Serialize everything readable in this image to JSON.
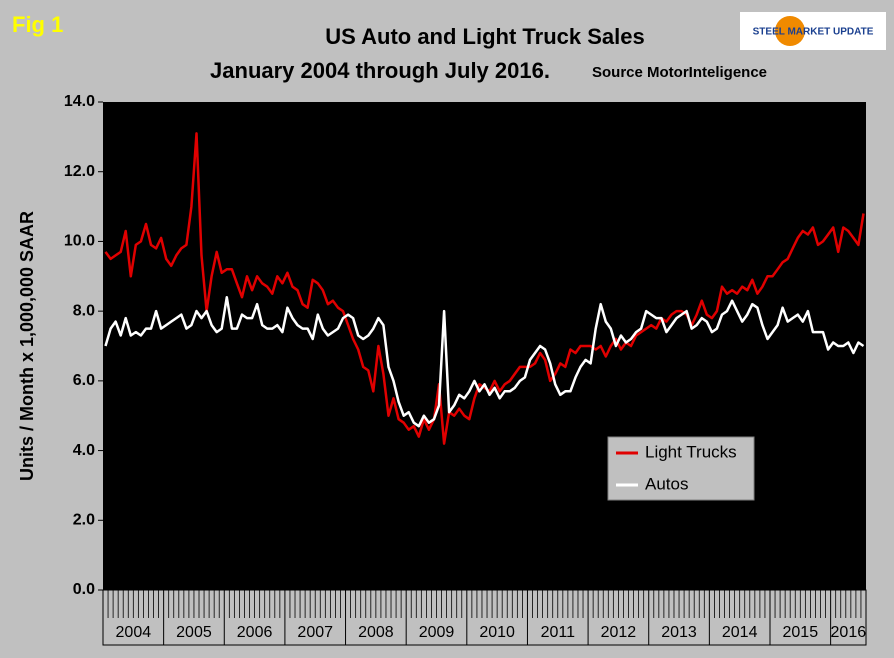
{
  "chart_data": {
    "type": "line",
    "fig_label": "Fig 1",
    "title": "US Auto and Light Truck Sales",
    "subtitle": "January 2004 through July 2016.",
    "source": "Source MotorInteligence",
    "logo": "STEEL MARKET UPDATE",
    "y_label": "Units / Month x 1,000,000 SAAR",
    "categories": [
      "2004",
      "2005",
      "2006",
      "2007",
      "2008",
      "2009",
      "2010",
      "2011",
      "2012",
      "2013",
      "2014",
      "2015",
      "2016"
    ],
    "ylim": [
      0,
      14
    ],
    "yticks": [
      {
        "value": 0,
        "label": "0.0"
      },
      {
        "value": 2,
        "label": "2.0"
      },
      {
        "value": 4,
        "label": "4.0"
      },
      {
        "value": 6,
        "label": "6.0"
      },
      {
        "value": 8,
        "label": "8.0"
      },
      {
        "value": 10,
        "label": "10.0"
      },
      {
        "value": 12,
        "label": "12.0"
      },
      {
        "value": 14,
        "label": "14.0"
      }
    ],
    "grid": false,
    "legend": "lower right",
    "series": [
      {
        "name": "Light Trucks",
        "color": "#e00000",
        "values": [
          [
            9.7,
            9.5,
            9.6,
            9.7,
            10.3,
            9.0,
            9.9,
            10.0,
            10.5,
            9.9,
            9.8,
            10.1
          ],
          [
            9.5,
            9.3,
            9.6,
            9.8,
            9.9,
            11.0,
            13.1,
            9.6,
            8.0,
            9.0,
            9.7,
            9.1
          ],
          [
            9.2,
            9.2,
            8.8,
            8.4,
            9.0,
            8.6,
            9.0,
            8.8,
            8.7,
            8.5,
            9.0,
            8.8
          ],
          [
            9.1,
            8.7,
            8.6,
            8.2,
            8.1,
            8.9,
            8.8,
            8.6,
            8.2,
            8.3,
            8.1,
            8.0
          ],
          [
            7.6,
            7.2,
            6.9,
            6.4,
            6.3,
            5.7,
            7.0,
            6.2,
            5.0,
            5.5,
            4.9,
            4.8
          ],
          [
            4.6,
            4.7,
            4.4,
            4.9,
            4.6,
            4.9,
            5.9,
            4.2,
            5.1,
            5.0,
            5.2,
            5.0
          ],
          [
            4.9,
            5.5,
            5.9,
            5.8,
            5.7,
            6.0,
            5.7,
            5.9,
            6.0,
            6.2,
            6.4,
            6.4
          ],
          [
            6.4,
            6.5,
            6.8,
            6.6,
            6.0,
            6.2,
            6.5,
            6.4,
            6.9,
            6.8,
            7.0,
            7.0
          ],
          [
            7.0,
            6.9,
            7.0,
            6.7,
            7.0,
            7.2,
            6.9,
            7.1,
            7.0,
            7.3,
            7.4,
            7.5
          ],
          [
            7.6,
            7.5,
            7.8,
            7.7,
            7.9,
            8.0,
            8.0,
            7.9,
            7.6,
            7.9,
            8.3,
            7.9
          ],
          [
            7.8,
            8.0,
            8.7,
            8.5,
            8.6,
            8.5,
            8.7,
            8.6,
            8.9,
            8.5,
            8.7,
            9.0
          ],
          [
            9.0,
            9.2,
            9.4,
            9.5,
            9.8,
            10.1,
            10.3,
            10.2,
            10.4,
            9.9,
            10.0,
            10.2
          ],
          [
            10.4,
            9.7,
            10.4,
            10.3,
            10.1,
            9.9,
            10.8
          ]
        ]
      },
      {
        "name": "Autos",
        "color": "#ffffff",
        "values": [
          [
            7.0,
            7.5,
            7.7,
            7.3,
            7.8,
            7.3,
            7.4,
            7.3,
            7.5,
            7.5,
            8.0,
            7.5
          ],
          [
            7.6,
            7.7,
            7.8,
            7.9,
            7.5,
            7.6,
            8.0,
            7.8,
            8.0,
            7.6,
            7.4,
            7.5
          ],
          [
            8.4,
            7.5,
            7.5,
            7.9,
            7.8,
            7.8,
            8.2,
            7.6,
            7.5,
            7.5,
            7.6,
            7.4
          ],
          [
            8.1,
            7.8,
            7.6,
            7.5,
            7.5,
            7.2,
            7.9,
            7.5,
            7.3,
            7.4,
            7.5,
            7.8
          ],
          [
            7.9,
            7.8,
            7.3,
            7.2,
            7.3,
            7.5,
            7.8,
            7.6,
            6.4,
            6.0,
            5.4,
            5.0
          ],
          [
            5.1,
            4.8,
            4.7,
            5.0,
            4.8,
            4.9,
            5.3,
            8.0,
            5.1,
            5.3,
            5.6,
            5.5
          ],
          [
            5.7,
            6.0,
            5.7,
            5.9,
            5.6,
            5.8,
            5.5,
            5.7,
            5.7,
            5.8,
            6.0,
            6.1
          ],
          [
            6.6,
            6.8,
            7.0,
            6.9,
            6.5,
            5.9,
            5.6,
            5.7,
            5.7,
            6.1,
            6.4,
            6.6
          ],
          [
            6.5,
            7.5,
            8.2,
            7.7,
            7.5,
            7.0,
            7.3,
            7.1,
            7.2,
            7.4,
            7.5,
            8.0
          ],
          [
            7.9,
            7.8,
            7.8,
            7.4,
            7.6,
            7.8,
            7.9,
            8.0,
            7.5,
            7.6,
            7.8,
            7.7
          ],
          [
            7.4,
            7.5,
            7.9,
            8.0,
            8.3,
            8.0,
            7.7,
            7.9,
            8.2,
            8.1,
            7.6,
            7.2
          ],
          [
            7.4,
            7.6,
            8.1,
            7.7,
            7.8,
            7.9,
            7.7,
            8.0,
            7.4,
            7.4,
            7.4,
            6.9
          ],
          [
            7.1,
            7.0,
            7.0,
            7.1,
            6.8,
            7.1,
            7.0
          ]
        ]
      }
    ]
  }
}
